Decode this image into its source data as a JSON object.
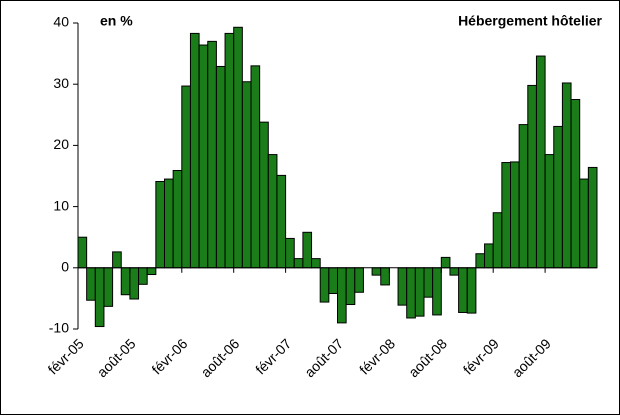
{
  "chart_data": {
    "type": "bar",
    "annotations": [
      "en %",
      "Hébergement hôtelier"
    ],
    "categories": [
      "févr-05",
      null,
      null,
      null,
      null,
      null,
      "août-05",
      null,
      null,
      null,
      null,
      null,
      "févr-06",
      null,
      null,
      null,
      null,
      null,
      "août-06",
      null,
      null,
      null,
      null,
      null,
      "févr-07",
      null,
      null,
      null,
      null,
      null,
      "août-07",
      null,
      null,
      null,
      null,
      null,
      "févr-08",
      null,
      null,
      null,
      null,
      null,
      "août-08",
      null,
      null,
      null,
      null,
      null,
      "févr-09",
      null,
      null,
      null,
      null,
      null,
      "août-09",
      null,
      null,
      null,
      null,
      null
    ],
    "values": [
      5,
      -5.3,
      -9.6,
      -6.3,
      2.6,
      -4.4,
      -5.1,
      -2.7,
      -1.1,
      14.1,
      14.5,
      15.9,
      29.7,
      38.3,
      36.4,
      37,
      32.9,
      38.3,
      39.3,
      30.4,
      33,
      23.8,
      18.5,
      15.1,
      4.8,
      1.5,
      5.8,
      1.5,
      -5.6,
      -4.2,
      -9,
      -6,
      -4,
      0,
      -1.2,
      -2.8,
      0,
      -6.1,
      -8.2,
      -7.9,
      -4.8,
      -7.7,
      1.7,
      -1.2,
      -7.3,
      -7.4,
      2.3,
      3.9,
      9,
      17.2,
      17.3,
      23.4,
      29.8,
      34.6,
      18.5,
      23.1,
      30.2,
      27.5,
      14.5,
      16.4
    ],
    "color": "#1a7d1a",
    "ylim": [
      -10,
      40
    ],
    "yticks": [
      -10,
      0,
      10,
      20,
      30,
      40
    ],
    "grid": false
  }
}
